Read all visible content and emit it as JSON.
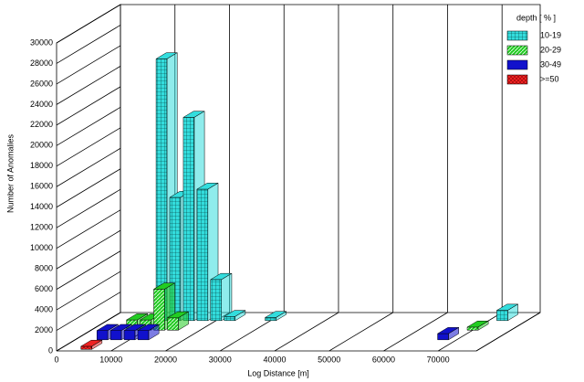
{
  "chart_data": {
    "type": "bar3d",
    "y_label": "Number of Anomalies",
    "x_label": "Log Distance [m]",
    "legend_title": "depth [ % ]",
    "x": [
      5000,
      7500,
      10000,
      12500,
      15000,
      17500,
      20000,
      22500,
      30000,
      67500,
      70000,
      72500
    ],
    "series": [
      {
        "name": "10-19",
        "color": "#33dddd",
        "values": [
          null,
          null,
          25500,
          12000,
          19800,
          12800,
          4000,
          400,
          300,
          null,
          null,
          1000
        ]
      },
      {
        "name": "20-29",
        "color": "#22cc22",
        "values": [
          null,
          1000,
          1000,
          4000,
          1200,
          null,
          null,
          null,
          null,
          null,
          300,
          null
        ]
      },
      {
        "name": "30-49",
        "color": "#1111cc",
        "values": [
          900,
          900,
          900,
          900,
          null,
          null,
          null,
          null,
          null,
          600,
          null,
          null
        ]
      },
      {
        "name": ">=50",
        "color": "#ee2222",
        "values": [
          300,
          null,
          null,
          null,
          null,
          null,
          null,
          null,
          null,
          null,
          null,
          null
        ]
      }
    ],
    "xlim": [
      0,
      77000
    ],
    "ylim": [
      0,
      30000
    ],
    "xticks": [
      0,
      10000,
      20000,
      30000,
      40000,
      50000,
      60000,
      70000
    ],
    "yticks": [
      0,
      2000,
      4000,
      6000,
      8000,
      10000,
      12000,
      14000,
      16000,
      18000,
      20000,
      22000,
      24000,
      26000,
      28000,
      30000
    ]
  }
}
